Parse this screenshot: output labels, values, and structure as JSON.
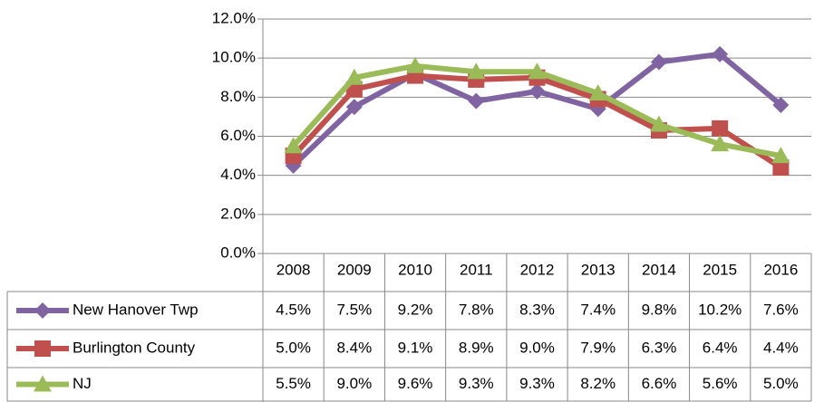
{
  "chart_data": {
    "type": "line",
    "categories": [
      "2008",
      "2009",
      "2010",
      "2011",
      "2012",
      "2013",
      "2014",
      "2015",
      "2016"
    ],
    "series": [
      {
        "name": "New Hanover Twp",
        "color": "#8064A2",
        "marker": "diamond",
        "values": [
          4.5,
          7.5,
          9.2,
          7.8,
          8.3,
          7.4,
          9.8,
          10.2,
          7.6
        ],
        "value_labels": [
          "4.5%",
          "7.5%",
          "9.2%",
          "7.8%",
          "8.3%",
          "7.4%",
          "9.8%",
          "10.2%",
          "7.6%"
        ]
      },
      {
        "name": "Burlington County",
        "color": "#C0504D",
        "marker": "square",
        "values": [
          5.0,
          8.4,
          9.1,
          8.9,
          9.0,
          7.9,
          6.3,
          6.4,
          4.4
        ],
        "value_labels": [
          "5.0%",
          "8.4%",
          "9.1%",
          "8.9%",
          "9.0%",
          "7.9%",
          "6.3%",
          "6.4%",
          "4.4%"
        ]
      },
      {
        "name": "NJ",
        "color": "#9BBB59",
        "marker": "triangle",
        "values": [
          5.5,
          9.0,
          9.6,
          9.3,
          9.3,
          8.2,
          6.6,
          5.6,
          5.0
        ],
        "value_labels": [
          "5.5%",
          "9.0%",
          "9.6%",
          "9.3%",
          "9.3%",
          "8.2%",
          "6.6%",
          "5.6%",
          "5.0%"
        ]
      }
    ],
    "ylim": [
      0,
      12
    ],
    "yticks": [
      {
        "value": 0,
        "label": "0.0%"
      },
      {
        "value": 2,
        "label": "2.0%"
      },
      {
        "value": 4,
        "label": "4.0%"
      },
      {
        "value": 6,
        "label": "6.0%"
      },
      {
        "value": 8,
        "label": "8.0%"
      },
      {
        "value": 10,
        "label": "10.0%"
      },
      {
        "value": 12,
        "label": "12.0%"
      }
    ],
    "grid": true,
    "legend": "table"
  }
}
